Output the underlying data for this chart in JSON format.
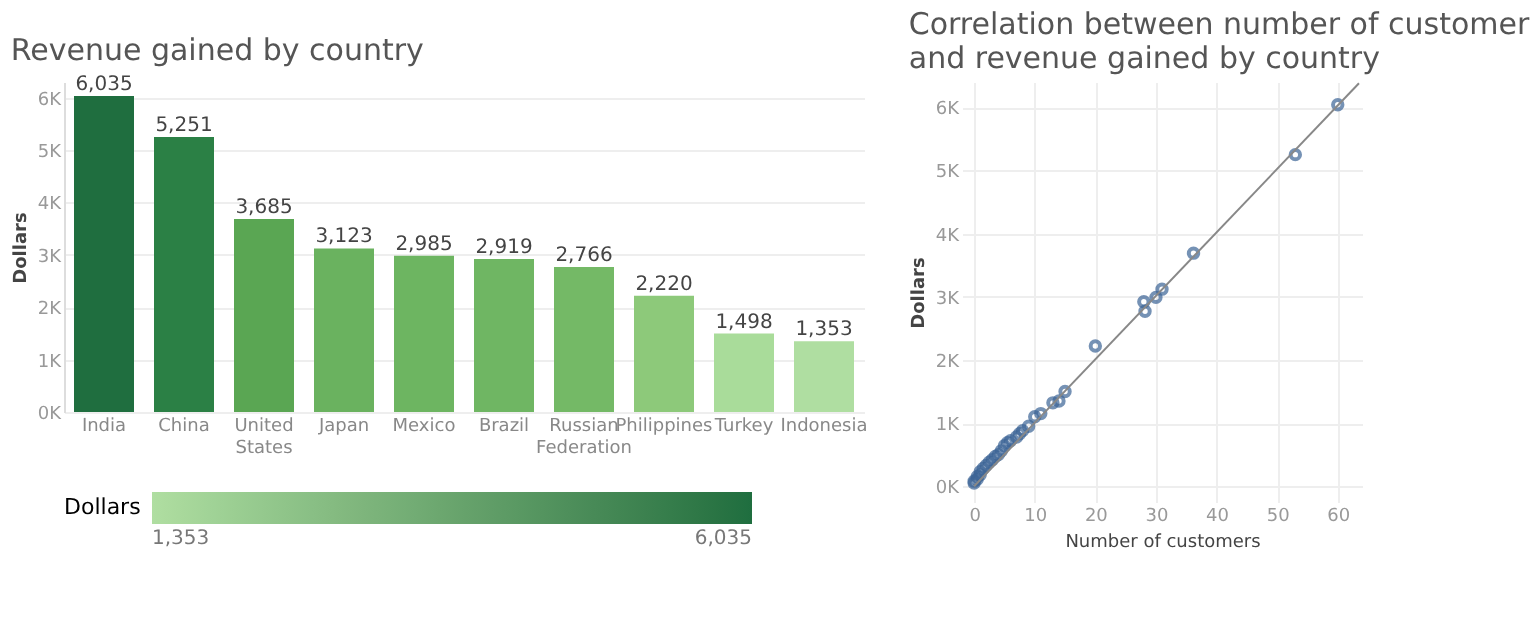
{
  "chart_data": [
    {
      "type": "bar",
      "title": "Revenue gained by country",
      "ylabel": "Dollars",
      "categories": [
        "India",
        "China",
        "United States",
        "Japan",
        "Mexico",
        "Brazil",
        "Russian Federation",
        "Philippines",
        "Turkey",
        "Indonesia"
      ],
      "values": [
        6035,
        5251,
        3685,
        3123,
        2985,
        2919,
        2766,
        2220,
        1498,
        1353
      ],
      "colors": [
        "#1f6e3f",
        "#2b8045",
        "#5aa653",
        "#6ab25f",
        "#6db561",
        "#6fb663",
        "#74b966",
        "#8dc97a",
        "#a9dc9a",
        "#afdea1"
      ],
      "ylim": [
        0,
        6300
      ],
      "yticks": [
        {
          "value": 0,
          "label": "0K"
        },
        {
          "value": 1000,
          "label": "1K"
        },
        {
          "value": 2000,
          "label": "2K"
        },
        {
          "value": 3000,
          "label": "3K"
        },
        {
          "value": 4000,
          "label": "4K"
        },
        {
          "value": 5000,
          "label": "5K"
        },
        {
          "value": 6000,
          "label": "6K"
        }
      ],
      "clabel": "Dollars",
      "clim": [
        1353,
        6035
      ],
      "cticks": [
        {
          "value": 1353,
          "label": "1,353"
        },
        {
          "value": 6035,
          "label": "6,035"
        }
      ],
      "value_labels": [
        "6,035",
        "5,251",
        "3,685",
        "3,123",
        "2,985",
        "2,919",
        "2,766",
        "2,220",
        "1,498",
        "1,353"
      ],
      "grid": "y"
    },
    {
      "type": "scatter",
      "title": "Correlation between number of customer\nand revenue gained by country",
      "xlabel": "Number of customers",
      "ylabel": "Dollars",
      "xlim": [
        -2,
        64
      ],
      "ylim": [
        -250,
        6400
      ],
      "xticks": [
        0,
        10,
        20,
        30,
        40,
        50,
        60
      ],
      "yticks": [
        {
          "value": 0,
          "label": "0K"
        },
        {
          "value": 1000,
          "label": "1K"
        },
        {
          "value": 2000,
          "label": "2K"
        },
        {
          "value": 3000,
          "label": "3K"
        },
        {
          "value": 4000,
          "label": "4K"
        },
        {
          "value": 5000,
          "label": "5K"
        },
        {
          "value": 6000,
          "label": "6K"
        }
      ],
      "grid": true,
      "series": [
        {
          "type": "scatter",
          "marker": "circle",
          "color": "#3c6496",
          "x": [
            60,
            53,
            36.2,
            31,
            30,
            28,
            28.2,
            20,
            15,
            14,
            13,
            11,
            10,
            9,
            8,
            7.5,
            7,
            6,
            5.5,
            5,
            4.5,
            4,
            3.5,
            3,
            2.5,
            2,
            1.5,
            1,
            1,
            0.5,
            0.5,
            0,
            0
          ],
          "values": [
            6040,
            5250,
            3690,
            3120,
            2990,
            2920,
            2770,
            2220,
            1500,
            1350,
            1320,
            1150,
            1100,
            950,
            880,
            830,
            780,
            720,
            690,
            640,
            560,
            500,
            470,
            420,
            380,
            330,
            280,
            230,
            180,
            150,
            110,
            80,
            50
          ]
        },
        {
          "type": "line",
          "color": "#888888",
          "x": [
            0,
            63.5
          ],
          "values": [
            0,
            6380
          ]
        }
      ]
    }
  ]
}
